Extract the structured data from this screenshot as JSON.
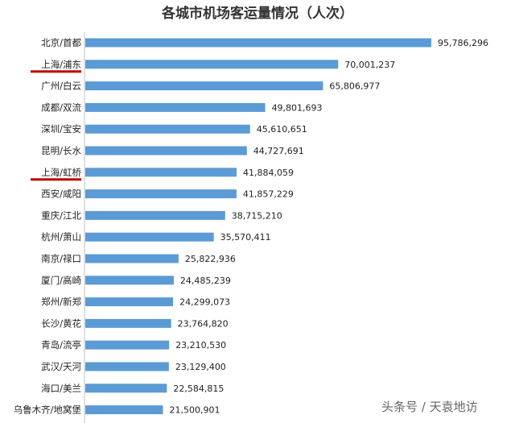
{
  "chart_data": {
    "type": "bar",
    "orientation": "horizontal",
    "title": "各城市机场客运量情况（人次）",
    "categories": [
      "北京/首都",
      "上海/浦东",
      "广州/白云",
      "成都/双流",
      "深圳/宝安",
      "昆明/长水",
      "上海/虹桥",
      "西安/咸阳",
      "重庆/江北",
      "杭州/萧山",
      "南京/禄口",
      "厦门/高崎",
      "郑州/新郑",
      "长沙/黄花",
      "青岛/流亭",
      "武汉/天河",
      "海口/美兰",
      "乌鲁木齐/地窝堡"
    ],
    "values": [
      95786296,
      70001237,
      65806977,
      49801693,
      45610651,
      44727691,
      41884059,
      41857229,
      38715210,
      35570411,
      25822936,
      24485239,
      24299073,
      23764820,
      23210530,
      23129400,
      22584815,
      21500901
    ],
    "value_labels": [
      "95,786,296",
      "70,001,237",
      "65,806,977",
      "49,801,693",
      "45,610,651",
      "44,727,691",
      "41,884,059",
      "41,857,229",
      "38,715,210",
      "35,570,411",
      "25,822,936",
      "24,485,239",
      "24,299,073",
      "23,764,820",
      "23,210,530",
      "23,129,400",
      "22,584,815",
      "21,500,901"
    ],
    "highlighted": [
      "上海/浦东",
      "上海/虹桥"
    ],
    "bar_color": "#5b9bd5",
    "highlight_color": "#c00000",
    "grid": false,
    "legend": "none"
  },
  "watermark": {
    "text": "头条号 / 天袁地访",
    "logo_text": "天袁地访"
  }
}
